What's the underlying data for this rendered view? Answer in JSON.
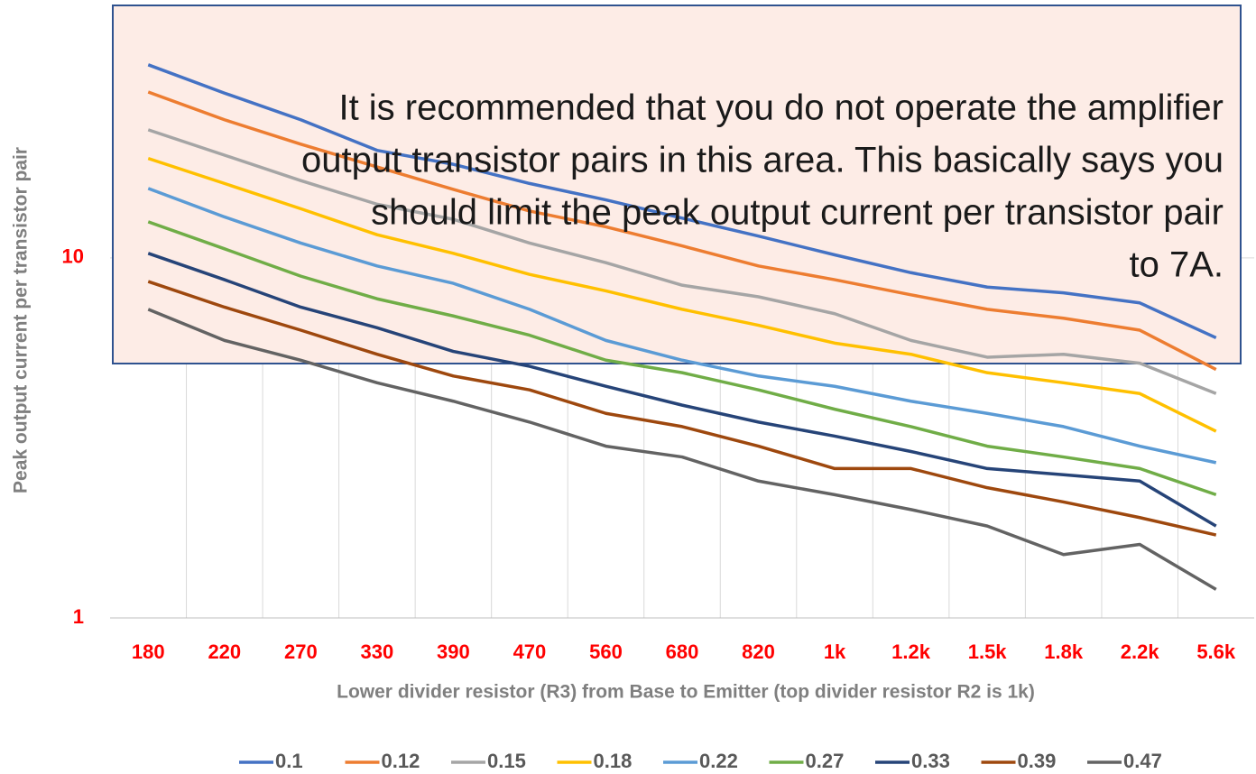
{
  "chart_data": {
    "type": "line",
    "y_scale": "log",
    "ylim": [
      1,
      50
    ],
    "yticks": [
      1,
      10
    ],
    "y_label": "Peak output current per transistor  pair",
    "x_label": "Lower divider resistor (R3) from Base to Emitter (top divider resistor R2  is 1k)",
    "annotation": [
      "It is recommended that you do not operate the amplifier",
      "output transistor pairs in this area. This basically says you",
      "should limit the peak output current per transistor pair",
      "to 7A."
    ],
    "categories": [
      "180",
      "220",
      "270",
      "330",
      "390",
      "470",
      "560",
      "680",
      "820",
      "1k",
      "1.2k",
      "1.5k",
      "1.8k",
      "2.2k",
      "5.6k"
    ],
    "series": [
      {
        "name": "0.1",
        "color": "#4472c4",
        "values": [
          34.4,
          28.7,
          24.2,
          19.9,
          18.2,
          16.1,
          14.5,
          12.9,
          11.5,
          10.2,
          9.1,
          8.3,
          8.0,
          7.5,
          6.0
        ]
      },
      {
        "name": "0.12",
        "color": "#ed7d31",
        "values": [
          28.9,
          24.2,
          20.7,
          17.9,
          15.5,
          13.5,
          12.2,
          10.8,
          9.5,
          8.7,
          7.9,
          7.2,
          6.8,
          6.3,
          4.9
        ]
      },
      {
        "name": "0.15",
        "color": "#a5a5a5",
        "values": [
          22.7,
          19.3,
          16.4,
          14.1,
          12.8,
          11.0,
          9.7,
          8.4,
          7.8,
          7.0,
          5.9,
          5.3,
          5.4,
          5.1,
          4.2
        ]
      },
      {
        "name": "0.18",
        "color": "#ffc000",
        "values": [
          18.9,
          16.1,
          13.7,
          11.6,
          10.3,
          9.0,
          8.1,
          7.2,
          6.5,
          5.8,
          5.4,
          4.8,
          4.5,
          4.2,
          3.3
        ]
      },
      {
        "name": "0.22",
        "color": "#5b9bd5",
        "values": [
          15.6,
          13.0,
          11.0,
          9.5,
          8.5,
          7.2,
          5.9,
          5.2,
          4.7,
          4.4,
          4.0,
          3.7,
          3.4,
          3.0,
          2.7
        ]
      },
      {
        "name": "0.27",
        "color": "#70ad47",
        "values": [
          12.6,
          10.6,
          8.9,
          7.7,
          6.9,
          6.1,
          5.2,
          4.8,
          4.3,
          3.8,
          3.4,
          3.0,
          2.8,
          2.6,
          2.2
        ]
      },
      {
        "name": "0.33",
        "color": "#264478",
        "values": [
          10.3,
          8.7,
          7.3,
          6.4,
          5.5,
          5.0,
          4.4,
          3.9,
          3.5,
          3.2,
          2.9,
          2.6,
          2.5,
          2.4,
          1.8
        ]
      },
      {
        "name": "0.39",
        "color": "#9e480e",
        "values": [
          8.6,
          7.3,
          6.3,
          5.4,
          4.7,
          4.3,
          3.7,
          3.4,
          3.0,
          2.6,
          2.6,
          2.3,
          2.1,
          1.9,
          1.7
        ]
      },
      {
        "name": "0.47",
        "color": "#636363",
        "values": [
          7.2,
          5.9,
          5.2,
          4.5,
          4.0,
          3.5,
          3.0,
          2.8,
          2.4,
          2.2,
          2.0,
          1.8,
          1.5,
          1.6,
          1.2
        ]
      }
    ]
  }
}
